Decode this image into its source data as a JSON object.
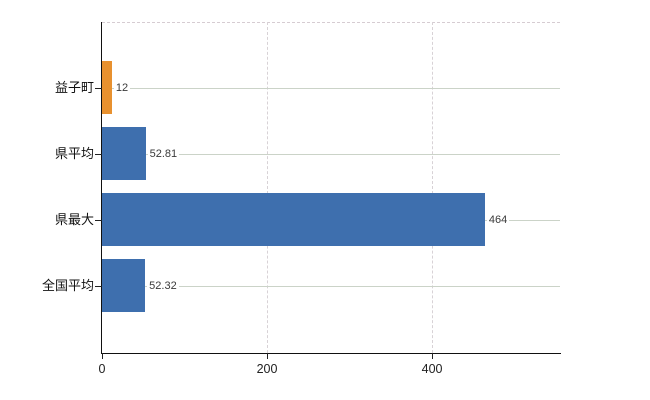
{
  "chart_data": {
    "type": "bar",
    "orientation": "horizontal",
    "title": "",
    "xlabel": "",
    "ylabel": "",
    "categories": [
      "益子町",
      "県平均",
      "県最大",
      "全国平均"
    ],
    "values": [
      12,
      52.81,
      464,
      52.32
    ],
    "value_labels": [
      "12",
      "52.81",
      "464",
      "52.32"
    ],
    "bar_colors": [
      "#e8912f",
      "#3e6fae",
      "#3e6fae",
      "#3e6fae"
    ],
    "xlim": [
      0,
      555
    ],
    "xticks": [
      0,
      200,
      400
    ],
    "grid": true,
    "legend": "none"
  },
  "colors": {
    "highlight_bar": "#e8912f",
    "default_bar": "#3e6fae",
    "row_gridline": "#cbd3c8",
    "tick_gridline": "#d8d2d6",
    "axis": "#111111",
    "background": "#ffffff"
  }
}
